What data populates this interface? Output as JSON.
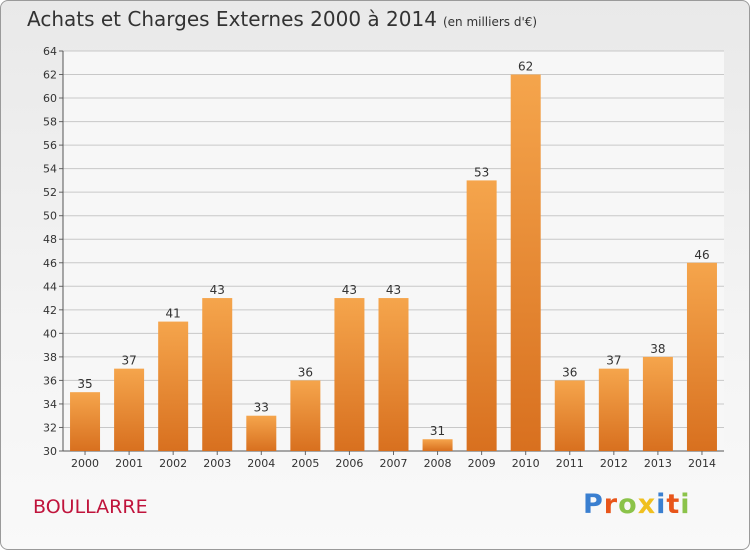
{
  "title": "Achats et Charges Externes 2000 à 2014",
  "subtitle": "(en milliers d'€)",
  "place": "BOULLARRE",
  "logo": {
    "letters": [
      {
        "ch": "P",
        "color": "#3a7fd0"
      },
      {
        "ch": "r",
        "color": "#e8551a"
      },
      {
        "ch": "o",
        "color": "#8bc34a"
      },
      {
        "ch": "x",
        "color": "#f0c020"
      },
      {
        "ch": "i",
        "color": "#3a7fd0"
      },
      {
        "ch": "t",
        "color": "#e8551a"
      },
      {
        "ch": "i",
        "color": "#8bc34a"
      }
    ]
  },
  "colors": {
    "bar_top": "#f5a54c",
    "bar_bottom": "#d8701f",
    "grid": "#c8c8c8"
  },
  "chart_data": {
    "type": "bar",
    "categories": [
      "2000",
      "2001",
      "2002",
      "2003",
      "2004",
      "2005",
      "2006",
      "2007",
      "2008",
      "2009",
      "2010",
      "2011",
      "2012",
      "2013",
      "2014"
    ],
    "values": [
      35,
      37,
      41,
      43,
      33,
      36,
      43,
      43,
      31,
      53,
      62,
      36,
      37,
      38,
      46
    ],
    "ylim": [
      30,
      64
    ],
    "yticks": [
      30,
      32,
      34,
      36,
      38,
      40,
      42,
      44,
      46,
      48,
      50,
      52,
      54,
      56,
      58,
      60,
      62,
      64
    ],
    "grid": true,
    "data_labels": true
  }
}
